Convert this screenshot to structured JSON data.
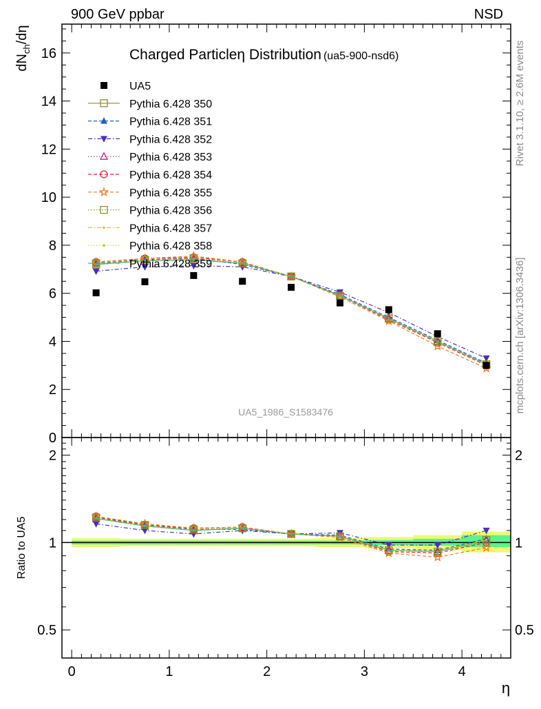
{
  "header": {
    "left": "900 GeV ppbar",
    "right": "NSD"
  },
  "side": {
    "rivet": "Rivet 3.1.10, ≥ 2.6M events",
    "mcplots": "mcplots.cern.ch [arXiv:1306.3436]"
  },
  "chart_data": [
    {
      "type": "scatter",
      "title": "Charged Particleη Distribution",
      "subtitle": "(ua5-900-nsd6)",
      "ylabel_main": "dN",
      "ylabel_sub": "ch",
      "ylabel_tail": "/dη",
      "watermark": "UA5_1986_S1583476",
      "xlim": [
        -0.1,
        4.5
      ],
      "ylim": [
        0,
        17.2
      ],
      "yticks": [
        0,
        2,
        4,
        6,
        8,
        10,
        12,
        14,
        16
      ],
      "legend_position": "top-left",
      "x": [
        0.25,
        0.75,
        1.25,
        1.75,
        2.25,
        2.75,
        3.25,
        3.75,
        4.25
      ],
      "data": {
        "name": "UA5",
        "values": [
          6.02,
          6.48,
          6.74,
          6.5,
          6.25,
          5.6,
          5.32,
          4.32,
          3.0
        ],
        "color": "#000000"
      },
      "series": [
        {
          "name": "Pythia 6.428 350",
          "marker": "square-open",
          "dash": "solid",
          "color": "#8b8b2e",
          "values": [
            7.2,
            7.35,
            7.4,
            7.25,
            6.7,
            5.9,
            4.95,
            4.0,
            3.05
          ]
        },
        {
          "name": "Pythia 6.428 351",
          "marker": "triangle-up",
          "dash": "dashed",
          "color": "#1f5fbf",
          "values": [
            7.25,
            7.4,
            7.45,
            7.2,
            6.7,
            5.95,
            5.0,
            4.05,
            3.1
          ]
        },
        {
          "name": "Pythia 6.428 352",
          "marker": "triangle-down",
          "dash": "dashdot",
          "color": "#4b2fbf",
          "values": [
            6.92,
            7.1,
            7.15,
            7.1,
            6.7,
            6.05,
            5.2,
            4.2,
            3.3
          ]
        },
        {
          "name": "Pythia 6.428 353",
          "marker": "triangle-up-open",
          "dash": "dotted",
          "color": "#c0287a",
          "values": [
            7.25,
            7.4,
            7.45,
            7.25,
            6.7,
            5.9,
            4.95,
            4.0,
            3.05
          ]
        },
        {
          "name": "Pythia 6.428 354",
          "marker": "circle-open",
          "dash": "dashed",
          "color": "#e0202a",
          "values": [
            7.3,
            7.45,
            7.5,
            7.3,
            6.7,
            5.9,
            4.9,
            3.95,
            3.0
          ]
        },
        {
          "name": "Pythia 6.428 355",
          "marker": "star-open",
          "dash": "dashed",
          "color": "#f07a1e",
          "values": [
            7.3,
            7.45,
            7.55,
            7.3,
            6.7,
            5.85,
            4.85,
            3.8,
            2.88
          ]
        },
        {
          "name": "Pythia 6.428 356",
          "marker": "square-open",
          "dash": "dotted",
          "color": "#7f9a22",
          "values": [
            7.25,
            7.4,
            7.45,
            7.25,
            6.7,
            5.9,
            4.95,
            4.0,
            3.05
          ]
        },
        {
          "name": "Pythia 6.428 357",
          "marker": "dot",
          "dash": "dashdot",
          "color": "#e8c21c",
          "values": [
            7.2,
            7.35,
            7.4,
            7.25,
            6.7,
            5.9,
            4.95,
            4.0,
            3.05
          ]
        },
        {
          "name": "Pythia 6.428 358",
          "marker": "dot",
          "dash": "dotted",
          "color": "#b8d81c",
          "values": [
            7.2,
            7.35,
            7.4,
            7.25,
            6.7,
            5.9,
            4.95,
            4.0,
            3.05
          ]
        },
        {
          "name": "Pythia 6.428 359",
          "marker": "dot",
          "dash": "dashdot",
          "color": "#2fbf8f",
          "values": [
            7.2,
            7.35,
            7.4,
            7.25,
            6.7,
            5.9,
            4.95,
            4.0,
            3.05
          ]
        }
      ]
    },
    {
      "type": "scatter",
      "ylabel": "Ratio to UA5",
      "xlabel": "η",
      "scale": "log",
      "xlim": [
        -0.1,
        4.5
      ],
      "ylim": [
        0.4,
        2.3
      ],
      "yticks": [
        0.5,
        1,
        2
      ],
      "ytick_labels": [
        "0.5",
        "1",
        "2"
      ],
      "xticks": [
        0,
        1,
        2,
        3,
        4
      ],
      "xtick_labels": [
        "0",
        "1",
        "2",
        "3",
        "4"
      ],
      "band_inner_color": "#60f090",
      "band_outer_color": "#f0f870",
      "bands": [
        {
          "x0": 0.0,
          "x1": 0.5,
          "inner": [
            0.985,
            1.015
          ],
          "outer": [
            0.965,
            1.035
          ]
        },
        {
          "x0": 0.5,
          "x1": 1.0,
          "inner": [
            0.985,
            1.015
          ],
          "outer": [
            0.97,
            1.03
          ]
        },
        {
          "x0": 1.0,
          "x1": 1.5,
          "inner": [
            0.985,
            1.015
          ],
          "outer": [
            0.97,
            1.03
          ]
        },
        {
          "x0": 1.5,
          "x1": 2.0,
          "inner": [
            0.985,
            1.015
          ],
          "outer": [
            0.97,
            1.03
          ]
        },
        {
          "x0": 2.0,
          "x1": 2.5,
          "inner": [
            0.985,
            1.015
          ],
          "outer": [
            0.97,
            1.03
          ]
        },
        {
          "x0": 2.5,
          "x1": 3.0,
          "inner": [
            0.985,
            1.015
          ],
          "outer": [
            0.965,
            1.035
          ]
        },
        {
          "x0": 3.0,
          "x1": 3.5,
          "inner": [
            0.98,
            1.02
          ],
          "outer": [
            0.955,
            1.045
          ]
        },
        {
          "x0": 3.5,
          "x1": 4.0,
          "inner": [
            0.975,
            1.03
          ],
          "outer": [
            0.94,
            1.06
          ]
        },
        {
          "x0": 4.0,
          "x1": 4.5,
          "inner": [
            0.965,
            1.06
          ],
          "outer": [
            0.925,
            1.09
          ]
        }
      ],
      "ratios": [
        {
          "name": "Pythia 6.428 350",
          "values": [
            1.21,
            1.14,
            1.1,
            1.12,
            1.07,
            1.05,
            0.94,
            0.93,
            1.02
          ]
        },
        {
          "name": "Pythia 6.428 351",
          "values": [
            1.22,
            1.15,
            1.11,
            1.11,
            1.07,
            1.06,
            0.95,
            0.94,
            1.03
          ]
        },
        {
          "name": "Pythia 6.428 352",
          "values": [
            1.16,
            1.1,
            1.07,
            1.1,
            1.07,
            1.08,
            0.98,
            0.98,
            1.1
          ]
        },
        {
          "name": "Pythia 6.428 353",
          "values": [
            1.22,
            1.15,
            1.11,
            1.12,
            1.07,
            1.05,
            0.94,
            0.93,
            1.02
          ]
        },
        {
          "name": "Pythia 6.428 354",
          "values": [
            1.23,
            1.15,
            1.12,
            1.13,
            1.07,
            1.05,
            0.93,
            0.92,
            1.0
          ]
        },
        {
          "name": "Pythia 6.428 355",
          "values": [
            1.23,
            1.16,
            1.12,
            1.13,
            1.07,
            1.04,
            0.92,
            0.89,
            0.96
          ]
        },
        {
          "name": "Pythia 6.428 356",
          "values": [
            1.22,
            1.15,
            1.11,
            1.12,
            1.07,
            1.05,
            0.94,
            0.93,
            1.02
          ]
        },
        {
          "name": "Pythia 6.428 357",
          "values": [
            1.21,
            1.14,
            1.1,
            1.12,
            1.07,
            1.05,
            0.94,
            0.93,
            1.02
          ]
        },
        {
          "name": "Pythia 6.428 358",
          "values": [
            1.21,
            1.14,
            1.1,
            1.12,
            1.07,
            1.05,
            0.94,
            0.93,
            1.02
          ]
        },
        {
          "name": "Pythia 6.428 359",
          "values": [
            1.21,
            1.14,
            1.1,
            1.12,
            1.07,
            1.05,
            0.94,
            0.93,
            1.01
          ]
        }
      ]
    }
  ]
}
